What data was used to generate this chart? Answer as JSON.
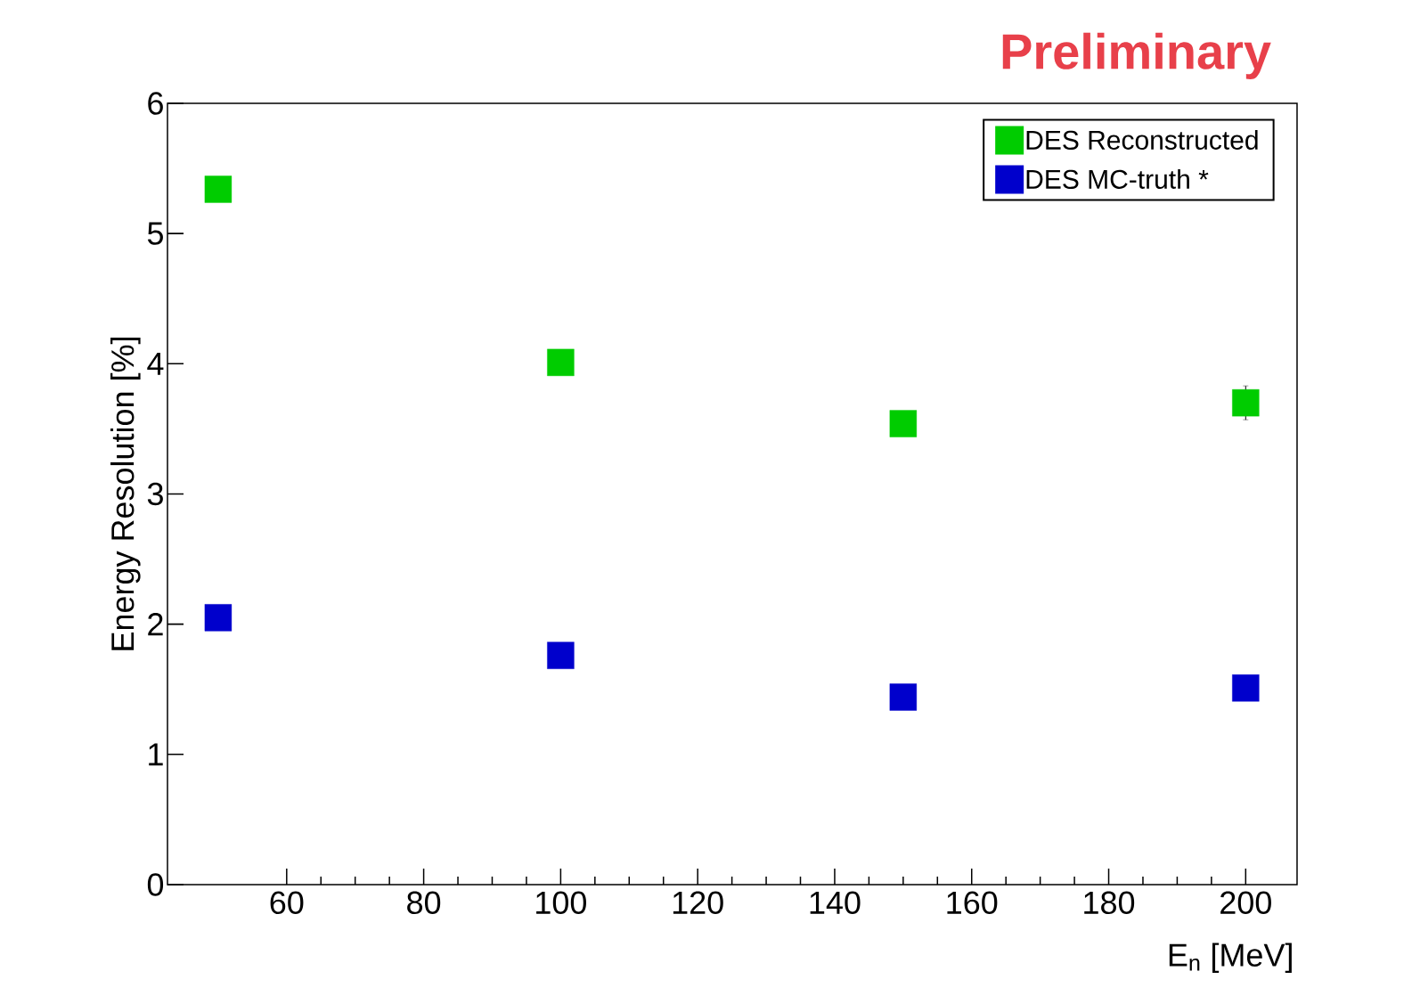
{
  "chart_data": {
    "type": "scatter",
    "title": "Preliminary",
    "xlabel": "E$_{n}$ [MeV]",
    "ylabel": "Energy Resolution [%]",
    "x": [
      50,
      100,
      150,
      200
    ],
    "series": [
      {
        "name": "DES Reconstructed",
        "color": "#00cc00",
        "values": [
          5.34,
          4.01,
          3.54,
          3.7
        ],
        "errors": [
          null,
          null,
          null,
          0.13
        ]
      },
      {
        "name": "DES MC-truth *",
        "color": "#0000cc",
        "values": [
          2.05,
          1.76,
          1.44,
          1.51
        ]
      }
    ],
    "xlim": [
      42.6,
      207.5
    ],
    "ylim": [
      0,
      6
    ],
    "xticks": [
      60,
      80,
      100,
      120,
      140,
      160,
      180,
      200
    ],
    "yticks": [
      0,
      1,
      2,
      3,
      4,
      5,
      6
    ],
    "marker": "square",
    "legend": "top right"
  }
}
